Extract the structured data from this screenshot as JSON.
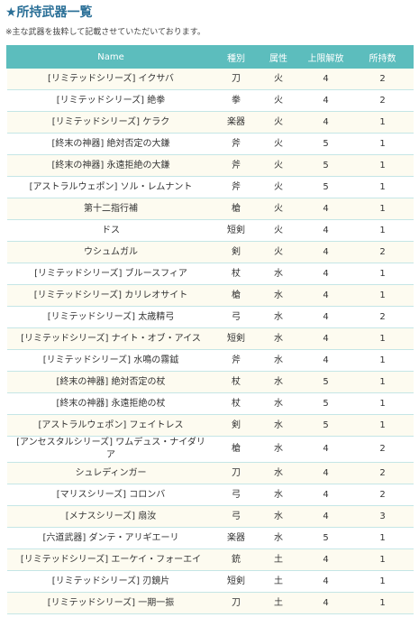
{
  "header": {
    "title": "★所持武器一覧",
    "note": "※主な武器を抜粋して記載させていただいております。"
  },
  "table": {
    "columns": [
      "Name",
      "種別",
      "属性",
      "上限解放",
      "所持数"
    ],
    "rows": [
      [
        "[リミテッドシリーズ] イクサバ",
        "刀",
        "火",
        4,
        2
      ],
      [
        "[リミテッドシリーズ] 絶拳",
        "拳",
        "火",
        4,
        2
      ],
      [
        "[リミテッドシリーズ] ケラク",
        "楽器",
        "火",
        4,
        1
      ],
      [
        "[終末の神器] 絶対否定の大鎌",
        "斧",
        "火",
        5,
        1
      ],
      [
        "[終末の神器] 永遠拒絶の大鎌",
        "斧",
        "火",
        5,
        1
      ],
      [
        "[アストラルウェポン] ソル・レムナント",
        "斧",
        "火",
        5,
        1
      ],
      [
        "第十二指行補",
        "槍",
        "火",
        4,
        1
      ],
      [
        "ドス",
        "短剣",
        "火",
        4,
        1
      ],
      [
        "ウシュムガル",
        "剣",
        "火",
        4,
        2
      ],
      [
        "[リミテッドシリーズ] ブルースフィア",
        "杖",
        "水",
        4,
        1
      ],
      [
        "[リミテッドシリーズ] カリレオサイト",
        "槍",
        "水",
        4,
        1
      ],
      [
        "[リミテッドシリーズ] 太歳精弓",
        "弓",
        "水",
        4,
        2
      ],
      [
        "[リミテッドシリーズ] ナイト・オブ・アイス",
        "短剣",
        "水",
        4,
        1
      ],
      [
        "[リミテッドシリーズ] 水鳴の霧鉞",
        "斧",
        "水",
        4,
        1
      ],
      [
        "[終末の神器] 絶対否定の杖",
        "杖",
        "水",
        5,
        1
      ],
      [
        "[終末の神器] 永遠拒絶の杖",
        "杖",
        "水",
        5,
        1
      ],
      [
        "[アストラルウェポン] フェイトレス",
        "剣",
        "水",
        5,
        1
      ],
      [
        "[アンセスタルシリーズ] ワムデュス・ナイダリア",
        "槍",
        "水",
        4,
        2
      ],
      [
        "シュレディンガー",
        "刀",
        "水",
        4,
        2
      ],
      [
        "[マリスシリーズ] コロンバ",
        "弓",
        "水",
        4,
        2
      ],
      [
        "[メナスシリーズ] 扇汝",
        "弓",
        "水",
        4,
        3
      ],
      [
        "[六道武器] ダンテ・アリギエーリ",
        "楽器",
        "水",
        5,
        1
      ],
      [
        "[リミテッドシリーズ] エーケイ・フォーエイ",
        "銃",
        "土",
        4,
        1
      ],
      [
        "[リミテッドシリーズ] 刃鏡片",
        "短剣",
        "土",
        4,
        1
      ],
      [
        "[リミテッドシリーズ] 一期一振",
        "刀",
        "土",
        4,
        1
      ]
    ]
  }
}
